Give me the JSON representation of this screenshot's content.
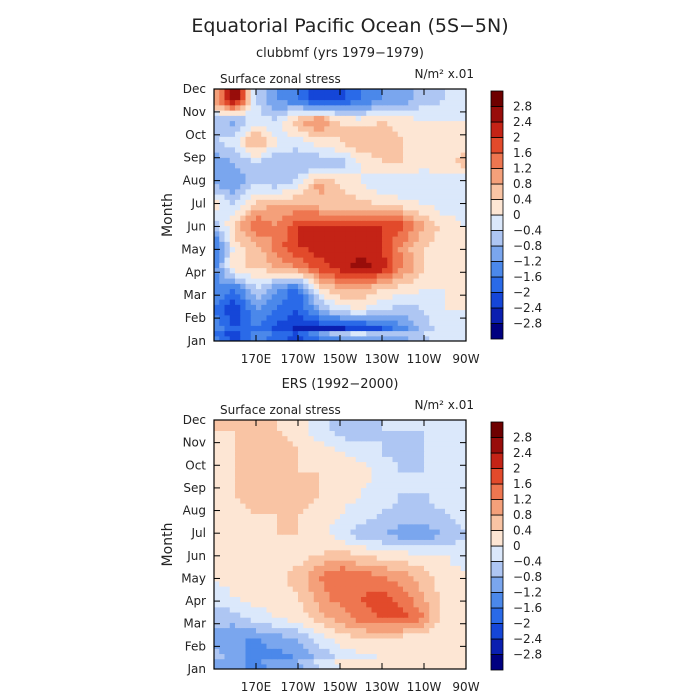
{
  "figure": {
    "title": "Equatorial Pacific Ocean (5S−5N)"
  },
  "colorbar": {
    "levels": [
      -2.8,
      -2.4,
      -2,
      -1.6,
      -1.2,
      -0.8,
      -0.4,
      0,
      0.4,
      0.8,
      1.2,
      1.6,
      2,
      2.4,
      2.8
    ],
    "tick_labels": [
      "−2.8",
      "−2.4",
      "−2",
      "−1.6",
      "−1.2",
      "−0.8",
      "−0.4",
      "0",
      "0.4",
      "0.8",
      "1.2",
      "1.6",
      "2",
      "2.4",
      "2.8"
    ],
    "colors": [
      "#000080",
      "#0a1fb0",
      "#1546d8",
      "#2a6ae8",
      "#4b88ea",
      "#7aa6ee",
      "#aec6f3",
      "#dbe8fb",
      "#fde6d4",
      "#f9c4a4",
      "#f4a07a",
      "#ee7650",
      "#e24a2b",
      "#c42316",
      "#980d0a",
      "#6e0000"
    ]
  },
  "chart_data": [
    {
      "type": "heatmap",
      "title": "clubbmf (yrs 1979−1979)",
      "left_label": "Surface zonal stress",
      "units_label": "N/m² x.01",
      "ylabel": "Month",
      "xlabel": "",
      "x_tick_labels": [
        "170E",
        "170W",
        "150W",
        "130W",
        "110W",
        "90W"
      ],
      "x_tick_lon": [
        170,
        190,
        210,
        230,
        250,
        270
      ],
      "x_range": [
        150,
        270
      ],
      "y_tick_labels": [
        "Jan",
        "Feb",
        "Mar",
        "Apr",
        "May",
        "Jun",
        "Jul",
        "Aug",
        "Sep",
        "Oct",
        "Nov",
        "Dec"
      ],
      "x_lon": [
        150,
        160,
        170,
        180,
        190,
        200,
        210,
        220,
        230,
        240,
        250,
        260,
        270
      ],
      "months": [
        "Jan",
        "Feb",
        "Mar",
        "Apr",
        "May",
        "Jun",
        "Jul",
        "Aug",
        "Sep",
        "Oct",
        "Nov",
        "Dec"
      ],
      "z": [
        [
          -1.2,
          -2.0,
          -1.6,
          -2.2,
          -2.6,
          -2.6,
          -2.8,
          -2.6,
          -2.2,
          -1.4,
          -0.6,
          -0.2,
          -0.2
        ],
        [
          -1.6,
          -2.4,
          -1.2,
          -1.6,
          -2.0,
          -1.0,
          -0.2,
          0.0,
          -0.4,
          -0.6,
          -0.4,
          0.0,
          0.0
        ],
        [
          -1.2,
          -1.6,
          -0.4,
          -1.2,
          -1.8,
          0.2,
          0.8,
          0.8,
          0.4,
          0.2,
          0.0,
          0.0,
          0.0
        ],
        [
          -1.4,
          0.4,
          0.4,
          0.8,
          1.2,
          1.8,
          2.2,
          2.6,
          2.2,
          1.2,
          0.4,
          0.2,
          0.0
        ],
        [
          -1.8,
          0.2,
          0.6,
          1.4,
          2.0,
          2.2,
          2.4,
          2.2,
          2.0,
          1.0,
          0.4,
          0.2,
          0.0
        ],
        [
          -0.8,
          0.6,
          1.6,
          1.2,
          2.0,
          2.2,
          2.0,
          2.0,
          2.0,
          1.8,
          0.8,
          0.2,
          0.0
        ],
        [
          0.2,
          -0.4,
          0.6,
          0.8,
          0.8,
          0.6,
          0.6,
          0.6,
          0.4,
          0.2,
          0.0,
          -0.2,
          -0.2
        ],
        [
          -0.8,
          -1.2,
          -0.4,
          -0.6,
          -0.2,
          1.0,
          0.4,
          0.0,
          -0.4,
          -0.4,
          -0.4,
          -0.2,
          -0.4
        ],
        [
          -1.2,
          -0.8,
          -0.4,
          -0.8,
          -0.8,
          -0.8,
          -0.6,
          0.0,
          0.4,
          0.4,
          0.2,
          0.2,
          0.6
        ],
        [
          -0.4,
          -0.2,
          1.0,
          0.0,
          -0.2,
          0.2,
          0.4,
          0.8,
          0.6,
          0.4,
          0.2,
          0.2,
          0.2
        ],
        [
          -0.6,
          -1.0,
          -0.2,
          -0.4,
          0.8,
          1.4,
          0.4,
          0.2,
          0.4,
          0.2,
          0.0,
          0.0,
          0.0
        ],
        [
          0.8,
          2.8,
          -0.4,
          -1.2,
          -1.6,
          -2.4,
          -2.2,
          -1.6,
          -1.2,
          -1.0,
          -0.6,
          -0.4,
          -0.4
        ]
      ]
    },
    {
      "type": "heatmap",
      "title": "ERS (1992−2000)",
      "left_label": "Surface zonal stress",
      "units_label": "N/m² x.01",
      "ylabel": "Month",
      "xlabel": "",
      "x_tick_labels": [
        "170E",
        "170W",
        "150W",
        "130W",
        "110W",
        "90W"
      ],
      "x_tick_lon": [
        170,
        190,
        210,
        230,
        250,
        270
      ],
      "x_range": [
        150,
        270
      ],
      "y_tick_labels": [
        "Jan",
        "Feb",
        "Mar",
        "Apr",
        "May",
        "Jun",
        "Jul",
        "Aug",
        "Sep",
        "Oct",
        "Nov",
        "Dec"
      ],
      "x_lon": [
        150,
        160,
        170,
        180,
        190,
        200,
        210,
        220,
        230,
        240,
        250,
        260,
        270
      ],
      "months": [
        "Jan",
        "Feb",
        "Mar",
        "Apr",
        "May",
        "Jun",
        "Jul",
        "Aug",
        "Sep",
        "Oct",
        "Nov",
        "Dec"
      ],
      "z": [
        [
          -0.6,
          -1.0,
          -1.4,
          -1.4,
          -1.2,
          -0.8,
          -0.4,
          -0.2,
          0.0,
          0.0,
          0.0,
          0.0,
          0.0
        ],
        [
          -1.0,
          -1.2,
          -1.2,
          -1.0,
          -0.8,
          -0.2,
          0.2,
          0.4,
          0.4,
          0.2,
          0.0,
          0.0,
          0.0
        ],
        [
          -0.6,
          -0.6,
          -0.2,
          0.0,
          0.2,
          0.6,
          1.0,
          1.4,
          1.6,
          1.8,
          1.2,
          0.2,
          0.0
        ],
        [
          -0.2,
          0.0,
          0.2,
          0.2,
          0.4,
          1.0,
          1.4,
          1.6,
          1.8,
          1.4,
          0.8,
          0.2,
          0.0
        ],
        [
          0.0,
          0.2,
          0.2,
          0.2,
          0.6,
          1.2,
          1.6,
          1.4,
          1.2,
          1.0,
          0.6,
          0.2,
          0.0
        ],
        [
          0.0,
          0.2,
          0.2,
          0.2,
          0.2,
          0.4,
          0.6,
          0.4,
          0.2,
          0.2,
          0.0,
          0.0,
          -0.2
        ],
        [
          0.0,
          0.2,
          0.2,
          0.4,
          0.4,
          0.2,
          -0.2,
          -0.6,
          -0.8,
          -1.0,
          -1.0,
          -0.8,
          -0.4
        ],
        [
          0.0,
          0.2,
          0.4,
          0.4,
          0.4,
          0.2,
          0.0,
          -0.2,
          -0.4,
          -0.6,
          -0.6,
          -0.4,
          -0.2
        ],
        [
          0.2,
          0.4,
          0.6,
          0.6,
          0.6,
          0.4,
          0.2,
          0.0,
          -0.2,
          -0.4,
          -0.4,
          -0.2,
          0.0
        ],
        [
          0.2,
          0.4,
          0.4,
          0.4,
          0.4,
          0.4,
          0.4,
          0.2,
          -0.2,
          -0.4,
          -0.4,
          -0.2,
          0.0
        ],
        [
          0.2,
          0.4,
          0.4,
          0.6,
          0.4,
          0.2,
          0.0,
          -0.2,
          -0.4,
          -0.6,
          -0.4,
          -0.2,
          0.0
        ],
        [
          0.4,
          0.4,
          0.4,
          0.4,
          0.2,
          -0.2,
          -0.6,
          -0.6,
          -0.4,
          -0.4,
          -0.4,
          -0.2,
          0.0
        ]
      ]
    }
  ]
}
